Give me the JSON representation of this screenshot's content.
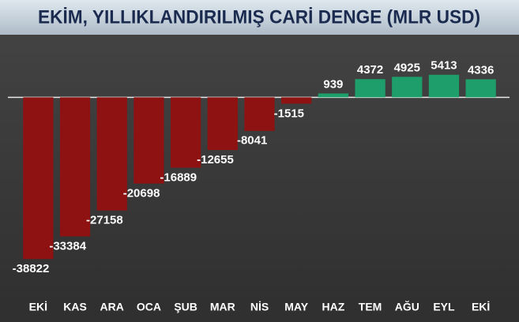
{
  "chart_data": {
    "type": "bar",
    "title": "EKİM, YILLIKLANDIRILMIŞ CARİ DENGE (MLR USD)",
    "categories": [
      "EKİ",
      "KAS",
      "ARA",
      "OCA",
      "ŞUB",
      "MAR",
      "NİS",
      "MAY",
      "HAZ",
      "TEM",
      "AĞU",
      "EYL",
      "EKİ"
    ],
    "values": [
      -38822,
      -33384,
      -27158,
      -20698,
      -16889,
      -12655,
      -8041,
      -1515,
      939,
      4372,
      4925,
      5413,
      4336
    ],
    "negative_color": "#8e1212",
    "positive_color": "#1e9e6a",
    "ylim": [
      -42000,
      12000
    ]
  }
}
